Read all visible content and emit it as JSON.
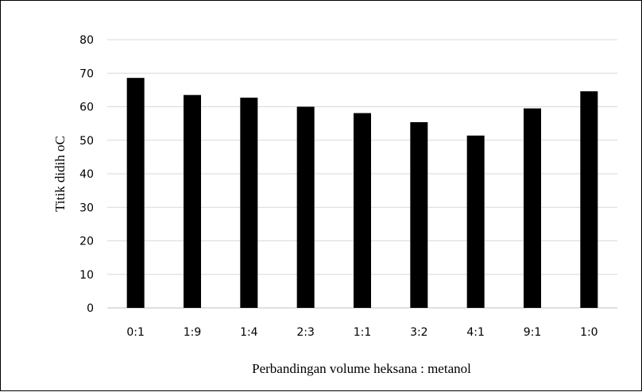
{
  "chart_data": {
    "type": "bar",
    "title": "",
    "xlabel": "Perbandingan  volume heksana : metanol",
    "ylabel": "Titik didih oC",
    "categories": [
      "0:1",
      "1:9",
      "1:4",
      "2:3",
      "1:1",
      "3:2",
      "4:1",
      "9:1",
      "1:0"
    ],
    "values": [
      68.6,
      63.5,
      62.7,
      60.0,
      58.1,
      55.4,
      51.4,
      59.5,
      64.6
    ],
    "ylim": [
      0,
      80
    ],
    "yticks": [
      0,
      10,
      20,
      30,
      40,
      50,
      60,
      70,
      80
    ],
    "grid": true,
    "legend": "none",
    "bar_color": "#000000"
  }
}
